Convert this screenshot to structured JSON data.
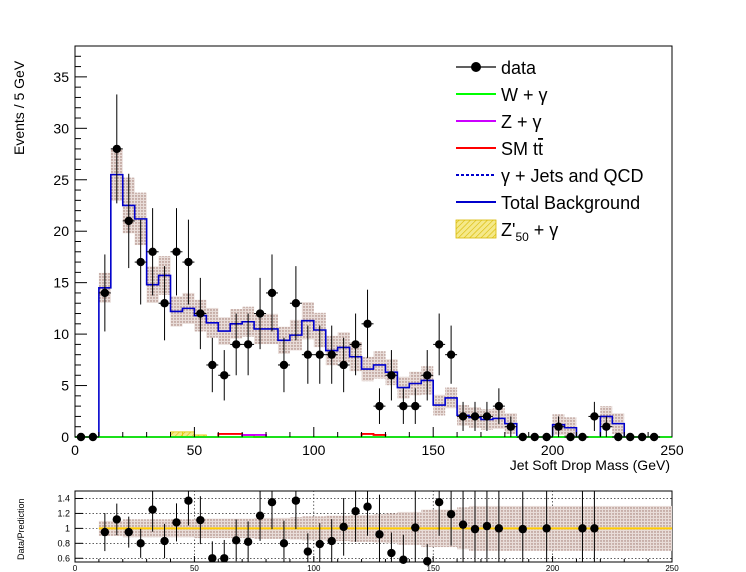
{
  "chart_data": [
    {
      "type": "histogram",
      "ylabel": "Events / 5 GeV",
      "xlabel": "Jet Soft Drop Mass (GeV)",
      "xlim": [
        0,
        250
      ],
      "ylim": [
        0,
        38
      ],
      "x_ticks": [
        0,
        50,
        100,
        150,
        200,
        250
      ],
      "y_ticks": [
        0,
        5,
        10,
        15,
        20,
        25,
        30,
        35
      ],
      "bin_edges": [
        0,
        5,
        10,
        15,
        20,
        25,
        30,
        35,
        40,
        45,
        50,
        55,
        60,
        65,
        70,
        75,
        80,
        85,
        90,
        95,
        100,
        105,
        110,
        115,
        120,
        125,
        130,
        135,
        140,
        145,
        150,
        155,
        160,
        165,
        170,
        175,
        180,
        185,
        190,
        195,
        200,
        205,
        210,
        215,
        220,
        225,
        230,
        235,
        240,
        245,
        250
      ],
      "legend": {
        "placement": "top-right",
        "entries": [
          "data",
          "W + γ",
          "Z + γ",
          "SM t̅t̅",
          "γ + Jets and QCD",
          "Total Background",
          "Z'50 + γ"
        ],
        "signal_label_main": "Z'",
        "signal_label_sub": "50",
        "signal_label_rest": " + γ",
        "ttbar_prefix": "SM t",
        "ttbar_over": "t"
      },
      "series": [
        {
          "name": "data",
          "style": "markers",
          "x": [
            2.5,
            7.5,
            12.5,
            17.5,
            22.5,
            27.5,
            32.5,
            37.5,
            42.5,
            47.5,
            52.5,
            57.5,
            62.5,
            67.5,
            72.5,
            77.5,
            82.5,
            87.5,
            92.5,
            97.5,
            102.5,
            107.5,
            112.5,
            117.5,
            122.5,
            127.5,
            132.5,
            137.5,
            142.5,
            147.5,
            152.5,
            157.5,
            162.5,
            167.5,
            172.5,
            177.5,
            182.5,
            187.5,
            192.5,
            197.5,
            202.5,
            207.5,
            212.5,
            217.5,
            222.5,
            227.5,
            232.5,
            237.5,
            242.5
          ],
          "values": [
            0,
            0,
            14,
            28,
            21,
            17,
            18,
            13,
            18,
            17,
            12,
            7,
            6,
            9,
            9,
            12,
            14,
            7,
            13,
            8,
            8,
            8,
            7,
            9,
            11,
            3,
            6,
            3,
            3,
            6,
            9,
            8,
            2,
            2,
            2,
            3,
            1,
            0,
            0,
            0,
            1,
            0,
            0,
            2,
            1,
            0,
            0,
            0,
            0
          ]
        },
        {
          "name": "Total Background",
          "style": "step",
          "color": "#0000cc",
          "values": [
            0,
            0,
            14.5,
            25.5,
            22.5,
            21.2,
            14.8,
            15.7,
            12.2,
            12.5,
            11.8,
            11.1,
            10.3,
            11.0,
            11.2,
            10.5,
            10.5,
            9.4,
            9.9,
            11.3,
            10.4,
            8.4,
            8.7,
            7.8,
            6.6,
            7.0,
            6.3,
            4.8,
            5.2,
            5.5,
            3.1,
            3.8,
            2.1,
            1.9,
            1.7,
            1.8,
            1.3,
            0,
            0,
            0,
            1.2,
            0.9,
            0,
            0,
            2.0,
            1.3,
            0,
            0,
            0,
            0
          ]
        },
        {
          "name": "Z'50 + γ",
          "style": "hatched-fill",
          "color": "#e6c800",
          "values": [
            0,
            0,
            0,
            0,
            0,
            0,
            0,
            0,
            0.5,
            0.5,
            0.2,
            0,
            0,
            0,
            0,
            0,
            0,
            0,
            0,
            0,
            0,
            0,
            0,
            0,
            0,
            0,
            0,
            0,
            0,
            0,
            0,
            0,
            0,
            0,
            0,
            0,
            0,
            0,
            0,
            0,
            0,
            0,
            0,
            0,
            0,
            0,
            0,
            0,
            0,
            0
          ]
        },
        {
          "name": "SM t̅t̅",
          "style": "step",
          "color": "#ff0000",
          "values": [
            0,
            0,
            0,
            0,
            0,
            0,
            0,
            0,
            0,
            0,
            0,
            0,
            0.3,
            0.3,
            0.2,
            0,
            0,
            0,
            0,
            0,
            0,
            0,
            0,
            0,
            0.3,
            0.2,
            0,
            0,
            0,
            0,
            0,
            0,
            0,
            0,
            0,
            0,
            0,
            0,
            0,
            0,
            0,
            0,
            0,
            0,
            0,
            0,
            0,
            0,
            0,
            0
          ]
        },
        {
          "name": "Z + γ",
          "style": "step",
          "color": "#cc00ff",
          "values": [
            0,
            0,
            0,
            0,
            0,
            0,
            0,
            0,
            0,
            0,
            0,
            0,
            0,
            0,
            0.2,
            0.2,
            0,
            0,
            0,
            0,
            0,
            0,
            0,
            0,
            0,
            0,
            0,
            0,
            0,
            0,
            0,
            0,
            0,
            0,
            0,
            0,
            0,
            0,
            0,
            0,
            0,
            0,
            0,
            0,
            0,
            0,
            0,
            0,
            0,
            0
          ]
        },
        {
          "name": "W + γ",
          "style": "step",
          "color": "#00ff00",
          "values": [
            0,
            0,
            0,
            0,
            0,
            0,
            0,
            0,
            0,
            0,
            0,
            0,
            0,
            0,
            0,
            0,
            0,
            0,
            0,
            0,
            0,
            0,
            0,
            0,
            0,
            0,
            0,
            0,
            0,
            0,
            0,
            0,
            0,
            0,
            0,
            0,
            0,
            0,
            0,
            0,
            0,
            0,
            0,
            0,
            0,
            0,
            0,
            0,
            0,
            0
          ]
        }
      ]
    },
    {
      "type": "ratio",
      "ylabel": "Data/Prediction",
      "xlim": [
        0,
        250
      ],
      "ylim": [
        0.55,
        1.5
      ],
      "x_ticks": [
        0,
        50,
        100,
        150,
        200,
        250
      ],
      "y_ticks": [
        0.6,
        0.8,
        1,
        1.2,
        1.4
      ],
      "y_tick_labels": [
        "0.6",
        "0.8",
        "1",
        "1.2",
        "1.4"
      ],
      "reference_line": 1,
      "x": [
        12.5,
        17.5,
        22.5,
        27.5,
        32.5,
        37.5,
        42.5,
        47.5,
        52.5,
        57.5,
        62.5,
        67.5,
        72.5,
        77.5,
        82.5,
        87.5,
        92.5,
        97.5,
        102.5,
        107.5,
        112.5,
        117.5,
        122.5,
        127.5,
        132.5,
        137.5,
        142.5,
        147.5,
        152.5,
        157.5,
        162.5,
        167.5,
        172.5,
        177.5,
        187.5,
        197.5,
        212.5,
        217.5
      ],
      "values": [
        0.95,
        1.12,
        0.95,
        0.8,
        1.25,
        0.83,
        1.08,
        1.37,
        1.11,
        0.6,
        0.6,
        0.84,
        0.82,
        1.17,
        1.35,
        0.8,
        1.37,
        0.69,
        0.79,
        0.83,
        1.02,
        1.23,
        1.29,
        0.92,
        0.67,
        0.58,
        1.01,
        0.56,
        1.35,
        1.19,
        1.05,
        0.99,
        1.03,
        1.0,
        0.99,
        1.0,
        1.0,
        1.0
      ],
      "syst_band": [
        0.14,
        0.1,
        0.1,
        0.1,
        0.12,
        0.12,
        0.12,
        0.12,
        0.12,
        0.12,
        0.13,
        0.13,
        0.13,
        0.13,
        0.13,
        0.14,
        0.14,
        0.14,
        0.15,
        0.16,
        0.16,
        0.17,
        0.17,
        0.18,
        0.18,
        0.19,
        0.2,
        0.22,
        0.22,
        0.25,
        0.25,
        0.25,
        0.28,
        0.3,
        0.3,
        0.3,
        0.3,
        0.3,
        0.3,
        0.3,
        0.3,
        0.3,
        0.3,
        0.3,
        0.3,
        0.3,
        0.3,
        0.3,
        0.3,
        0.3
      ]
    }
  ]
}
